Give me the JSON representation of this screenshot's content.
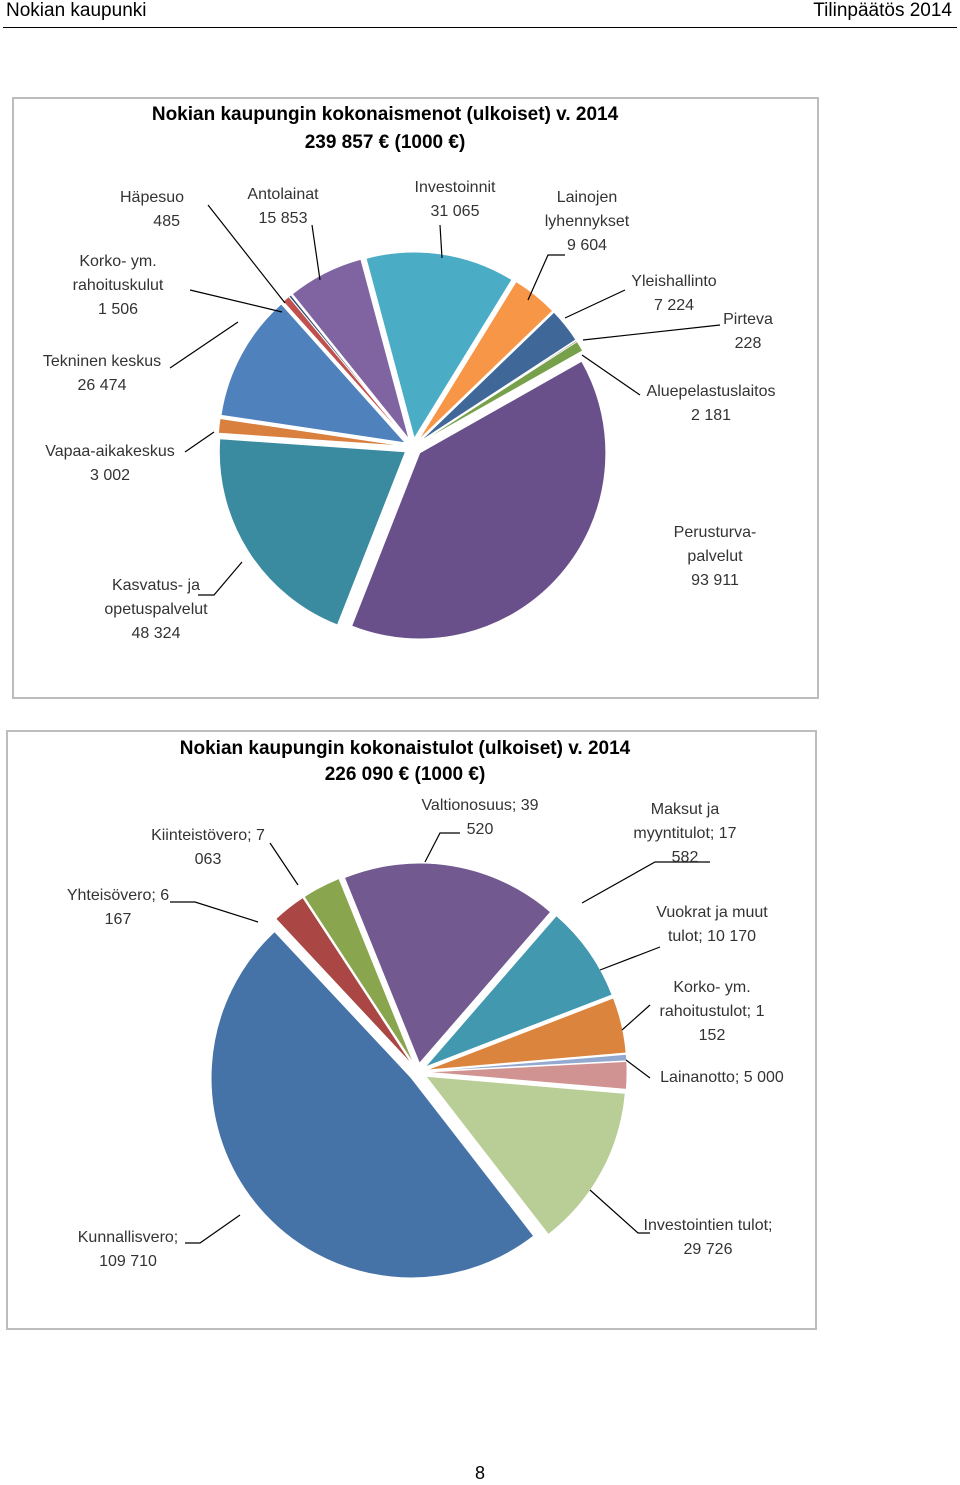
{
  "header": {
    "left": "Nokian kaupunki",
    "right": "Tilinpäätös 2014"
  },
  "chart_data": [
    {
      "type": "pie",
      "title": "Nokian kaupungin kokonaismenot (ulkoiset) v. 2014",
      "subtitle": "239 857 € (1000 €)",
      "categories": [
        "Investoinnit",
        "Lainojen lyhennykset",
        "Yleishallinto",
        "Pirteva",
        "Aluepelastuslaitos",
        "Perusturva-palvelut",
        "Kasvatus- ja opetuspalvelut",
        "Vapaa-aikakeskus",
        "Tekninen keskus",
        "Korko- ym. rahoituskulut",
        "Häpesuo",
        "Antolainat"
      ],
      "values": [
        31065,
        9604,
        7224,
        228,
        2181,
        93911,
        48324,
        3002,
        26474,
        1506,
        485,
        15853
      ],
      "value_labels": [
        "31 065",
        "9 604",
        "7 224",
        "228",
        "2 181",
        "93 911",
        "48 324",
        "3 002",
        "26 474",
        "1 506",
        "485",
        "15 853"
      ],
      "colors": [
        "#4BACC6",
        "#F79646",
        "#3F6797",
        "#1F1F1F",
        "#77A04A",
        "#69508A",
        "#3B8BA0",
        "#D9803E",
        "#4F81BD",
        "#C0504D",
        "#2C4D75",
        "#8064A2"
      ]
    },
    {
      "type": "pie",
      "title": "Nokian kaupungin kokonaistulot (ulkoiset) v. 2014",
      "subtitle": "226 090 € (1000 €)",
      "values": [
        39520,
        17582,
        10170,
        1152,
        5000,
        29726,
        109710,
        6167,
        7063
      ],
      "value_labels": [
        "Valtionosuus; 39 520",
        "Maksut ja myyntitulot; 17 582",
        "Vuokrat ja muut tulot; 10 170",
        "Korko- ym. rahoitustulot; 1 152",
        "Lainanotto; 5 000",
        "Investointien tulot; 29 726",
        "Kunnallisvero; 109 710",
        "Yhteisövero; 6 167",
        "Kiinteistövero; 7 063"
      ],
      "colors": [
        "#725990",
        "#4198AF",
        "#DB843D",
        "#93A9CF",
        "#D19392",
        "#B9CD96",
        "#4572A7",
        "#AA4643",
        "#89A54E"
      ]
    }
  ],
  "page_number": "8"
}
